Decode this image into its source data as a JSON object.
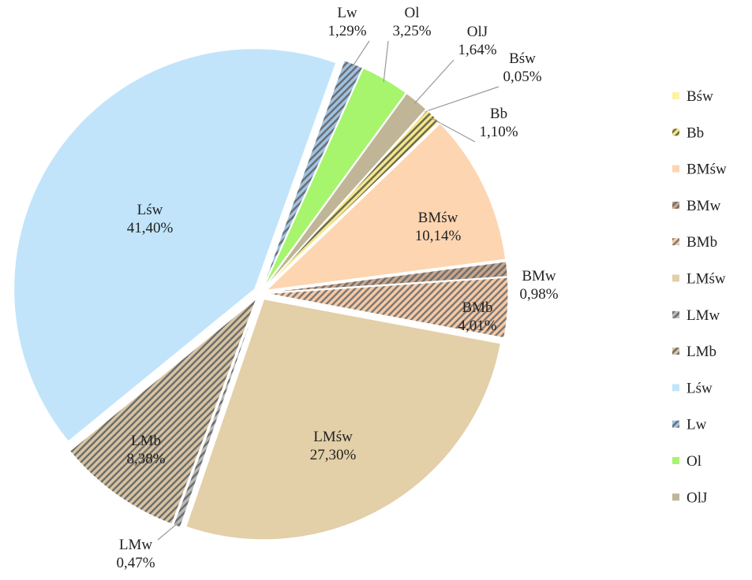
{
  "chart_data": {
    "type": "pie",
    "categories": [
      "Bśw",
      "Bb",
      "BMśw",
      "BMw",
      "BMb",
      "LMśw",
      "LMw",
      "LMb",
      "Lśw",
      "Lw",
      "Ol",
      "OlJ"
    ],
    "values": [
      0.05,
      1.1,
      10.14,
      0.98,
      4.01,
      27.3,
      0.47,
      8.38,
      41.4,
      1.29,
      3.25,
      1.64
    ],
    "value_labels": [
      "0,05%",
      "1,10%",
      "10,14%",
      "0,98%",
      "4,01%",
      "27,30%",
      "0,47%",
      "8,38%",
      "41,40%",
      "1,29%",
      "3,25%",
      "1,64%"
    ],
    "colors": [
      "#fff3a3",
      "#f5e68a",
      "#fdd5b1",
      "#c9a58a",
      "#f9c9a2",
      "#e3cfa8",
      "#b9b9b9",
      "#d8c4a0",
      "#c1e4fb",
      "#9dc3e6",
      "#a6f56d",
      "#c0b596"
    ],
    "hatch_colors": [
      null,
      "#6b6b50",
      null,
      "#6e6e6e",
      "#7a7a7a",
      null,
      "#6e6e6e",
      "#6e6e6e",
      null,
      "#6e6e6e",
      null,
      null
    ],
    "legend": "right"
  }
}
